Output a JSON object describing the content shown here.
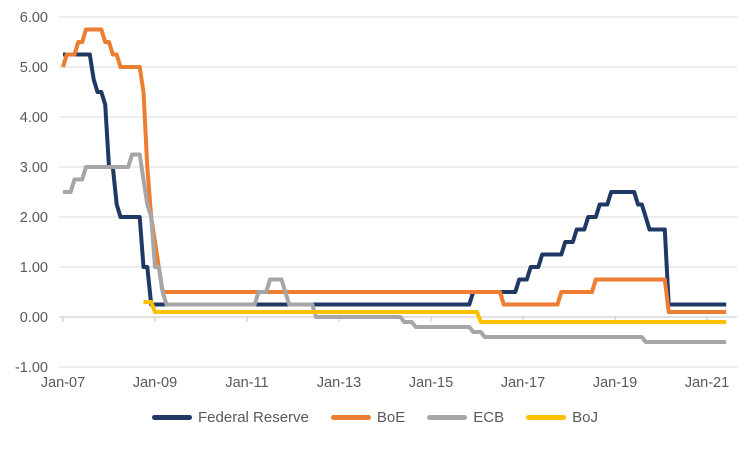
{
  "chart_data": {
    "type": "line",
    "title": "",
    "description": "Central bank policy interest rates, monthly, Jan-2007 through mid-2021",
    "x_axis": {
      "tick_labels": [
        "Jan-07",
        "Jan-09",
        "Jan-11",
        "Jan-13",
        "Jan-15",
        "Jan-17",
        "Jan-19",
        "Jan-21"
      ],
      "months_per_tick": 24,
      "x_encoding": "months since Jan-2007",
      "end_month": 173
    },
    "y_axis": {
      "min": -1,
      "max": 6,
      "step": 1,
      "tick_labels": [
        "6.00",
        "5.00",
        "4.00",
        "3.00",
        "2.00",
        "1.00",
        "0.00",
        "-1.00"
      ]
    },
    "grid": true,
    "legend": {
      "position": "bottom",
      "entries": [
        "Federal Reserve",
        "BoE",
        "ECB",
        "BoJ"
      ]
    },
    "colors": {
      "gridline": "#d9d9d9",
      "axis_line": "#c6c6c6",
      "tick_label": "#595959",
      "legend_label": "#595959",
      "background": "#ffffff"
    },
    "series": [
      {
        "name": "Federal Reserve",
        "color": "#1f3864",
        "points": [
          [
            0,
            5.25
          ],
          [
            7,
            5.25
          ],
          [
            8,
            4.75
          ],
          [
            9,
            4.5
          ],
          [
            10,
            4.5
          ],
          [
            11,
            4.25
          ],
          [
            12,
            3.0
          ],
          [
            13,
            3.0
          ],
          [
            14,
            2.25
          ],
          [
            15,
            2.0
          ],
          [
            20,
            2.0
          ],
          [
            21,
            1.0
          ],
          [
            22,
            1.0
          ],
          [
            23,
            0.25
          ],
          [
            106,
            0.25
          ],
          [
            107,
            0.5
          ],
          [
            118,
            0.5
          ],
          [
            119,
            0.75
          ],
          [
            121,
            0.75
          ],
          [
            122,
            1.0
          ],
          [
            124,
            1.0
          ],
          [
            125,
            1.25
          ],
          [
            130,
            1.25
          ],
          [
            131,
            1.5
          ],
          [
            133,
            1.5
          ],
          [
            134,
            1.75
          ],
          [
            136,
            1.75
          ],
          [
            137,
            2.0
          ],
          [
            139,
            2.0
          ],
          [
            140,
            2.25
          ],
          [
            142,
            2.25
          ],
          [
            143,
            2.5
          ],
          [
            149,
            2.5
          ],
          [
            150,
            2.25
          ],
          [
            151,
            2.25
          ],
          [
            152,
            2.0
          ],
          [
            153,
            1.75
          ],
          [
            157,
            1.75
          ],
          [
            158,
            0.25
          ],
          [
            173,
            0.25
          ]
        ]
      },
      {
        "name": "BoE",
        "color": "#ed7d31",
        "points": [
          [
            0,
            5.0
          ],
          [
            1,
            5.25
          ],
          [
            3,
            5.25
          ],
          [
            4,
            5.5
          ],
          [
            5,
            5.5
          ],
          [
            6,
            5.75
          ],
          [
            10,
            5.75
          ],
          [
            11,
            5.5
          ],
          [
            12,
            5.5
          ],
          [
            13,
            5.25
          ],
          [
            14,
            5.25
          ],
          [
            15,
            5.0
          ],
          [
            20,
            5.0
          ],
          [
            21,
            4.5
          ],
          [
            22,
            3.0
          ],
          [
            23,
            2.0
          ],
          [
            24,
            1.5
          ],
          [
            25,
            1.0
          ],
          [
            26,
            0.5
          ],
          [
            114,
            0.5
          ],
          [
            115,
            0.25
          ],
          [
            129,
            0.25
          ],
          [
            130,
            0.5
          ],
          [
            138,
            0.5
          ],
          [
            139,
            0.75
          ],
          [
            157,
            0.75
          ],
          [
            158,
            0.1
          ],
          [
            173,
            0.1
          ]
        ]
      },
      {
        "name": "ECB",
        "color": "#a6a6a6",
        "points": [
          [
            0,
            2.5
          ],
          [
            2,
            2.5
          ],
          [
            3,
            2.75
          ],
          [
            5,
            2.75
          ],
          [
            6,
            3.0
          ],
          [
            17,
            3.0
          ],
          [
            18,
            3.25
          ],
          [
            20,
            3.25
          ],
          [
            21,
            2.75
          ],
          [
            22,
            2.25
          ],
          [
            23,
            2.0
          ],
          [
            24,
            1.0
          ],
          [
            25,
            1.0
          ],
          [
            26,
            0.5
          ],
          [
            27,
            0.25
          ],
          [
            50,
            0.25
          ],
          [
            51,
            0.5
          ],
          [
            53,
            0.5
          ],
          [
            54,
            0.75
          ],
          [
            57,
            0.75
          ],
          [
            58,
            0.5
          ],
          [
            59,
            0.25
          ],
          [
            65,
            0.25
          ],
          [
            66,
            0.0
          ],
          [
            88,
            0.0
          ],
          [
            89,
            -0.1
          ],
          [
            91,
            -0.1
          ],
          [
            92,
            -0.2
          ],
          [
            106,
            -0.2
          ],
          [
            107,
            -0.3
          ],
          [
            109,
            -0.3
          ],
          [
            110,
            -0.4
          ],
          [
            151,
            -0.4
          ],
          [
            152,
            -0.5
          ],
          [
            173,
            -0.5
          ]
        ]
      },
      {
        "name": "BoJ",
        "color": "#ffc000",
        "points": [
          [
            21,
            0.3
          ],
          [
            23,
            0.3
          ],
          [
            24,
            0.1
          ],
          [
            108,
            0.1
          ],
          [
            109,
            -0.1
          ],
          [
            173,
            -0.1
          ]
        ]
      }
    ]
  }
}
